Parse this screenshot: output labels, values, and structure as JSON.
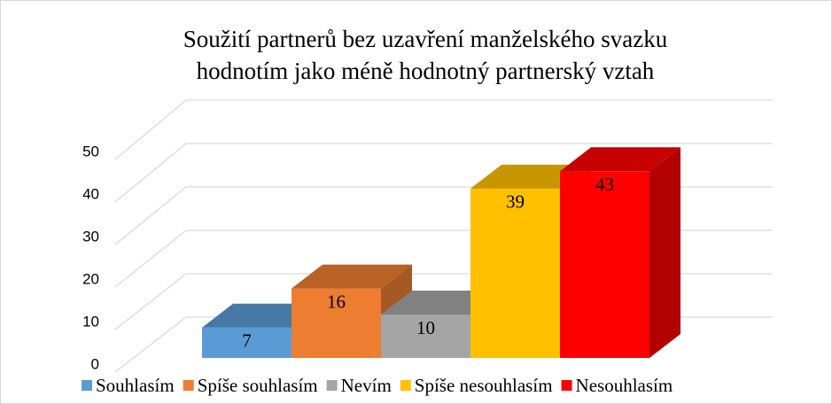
{
  "chart_data": {
    "type": "bar3d",
    "title": [
      "Soužití partnerů bez uzavření manželského svazku",
      "hodnotím jako méně hodnotný partnerský vztah"
    ],
    "categories": [
      "Souhlasím",
      "Spíše souhlasím",
      "Nevím",
      "Spíše nesouhlasím",
      "Nesouhlasím"
    ],
    "values": [
      7,
      16,
      10,
      39,
      43
    ],
    "colors": [
      "#5b9bd5",
      "#ed7d31",
      "#a5a5a5",
      "#ffc000",
      "#ff0000"
    ],
    "ylim": [
      0,
      50
    ],
    "yticks": [
      0,
      10,
      20,
      30,
      40,
      50
    ],
    "grid": true,
    "legend": "bottom"
  }
}
